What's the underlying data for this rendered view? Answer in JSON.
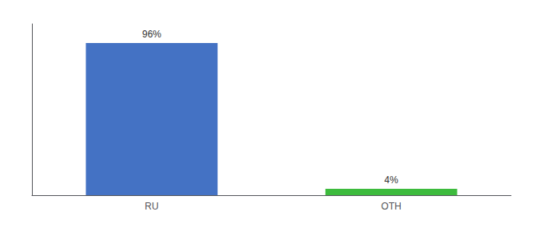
{
  "chart_data": {
    "type": "bar",
    "categories": [
      "RU",
      "OTH"
    ],
    "values": [
      96,
      4
    ],
    "value_labels": [
      "96%",
      "4%"
    ],
    "colors": [
      "#4472c4",
      "#3dbb3d"
    ],
    "ylim": [
      0,
      108
    ],
    "grid": false,
    "data_labels": true,
    "tick_labels": "x"
  }
}
